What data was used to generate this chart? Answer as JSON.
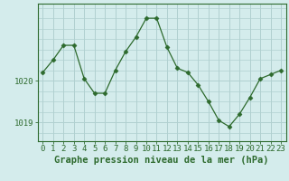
{
  "x": [
    0,
    1,
    2,
    3,
    4,
    5,
    6,
    7,
    8,
    9,
    10,
    11,
    12,
    13,
    14,
    15,
    16,
    17,
    18,
    19,
    20,
    21,
    22,
    23
  ],
  "y": [
    1020.2,
    1020.5,
    1020.85,
    1020.85,
    1020.05,
    1019.7,
    1019.7,
    1020.25,
    1020.7,
    1021.05,
    1021.5,
    1021.5,
    1020.8,
    1020.3,
    1020.2,
    1019.9,
    1019.5,
    1019.05,
    1018.9,
    1019.2,
    1019.6,
    1020.05,
    1020.15,
    1020.25
  ],
  "line_color": "#2d6a2d",
  "marker": "D",
  "marker_size": 2.5,
  "bg_color": "#d4ecec",
  "grid_color": "#b0d0d0",
  "ylim": [
    1018.55,
    1021.85
  ],
  "ytick_positions": [
    1019.0,
    1020.0
  ],
  "ytick_labels": [
    "1019",
    "1020"
  ],
  "xlabel_label": "Graphe pression niveau de la mer (hPa)",
  "xticks": [
    0,
    1,
    2,
    3,
    4,
    5,
    6,
    7,
    8,
    9,
    10,
    11,
    12,
    13,
    14,
    15,
    16,
    17,
    18,
    19,
    20,
    21,
    22,
    23
  ],
  "tick_label_color": "#2d6a2d",
  "label_fontsize": 6.5,
  "axis_label_fontsize": 7.5,
  "spine_color": "#2d6a2d"
}
